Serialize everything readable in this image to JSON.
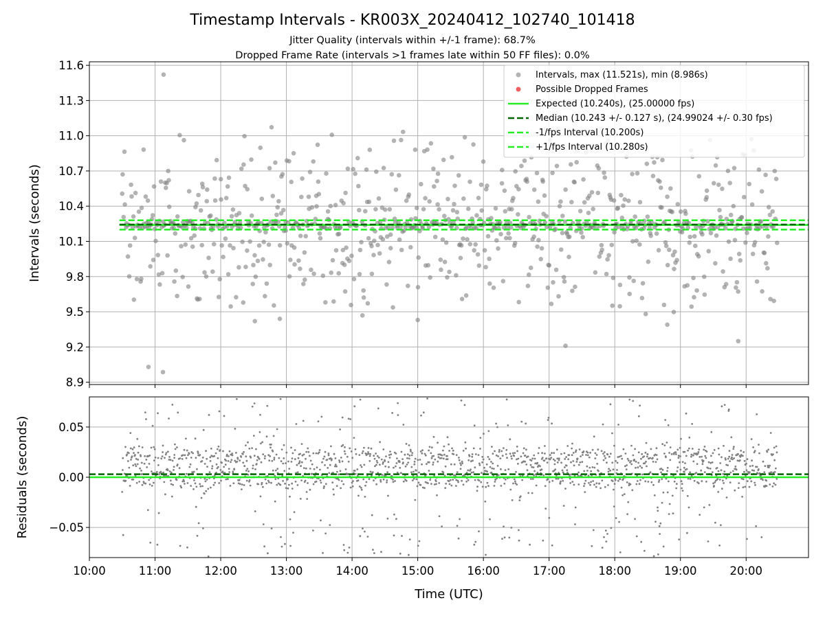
{
  "title": "Timestamp Intervals - KR003X_20240412_102740_101418",
  "subtitle_line1": "Jitter Quality (intervals within +/-1 frame): 68.7%",
  "subtitle_line2": "Dropped Frame Rate (intervals >1 frames late within 50 FF files): 0.0%",
  "colors": {
    "points": "#808080",
    "dropped": "#f06060",
    "expected": "#22ee22",
    "median": "#006400",
    "interval": "#22ee22",
    "grid": "#b0b0b0"
  },
  "chart_data": [
    {
      "type": "scatter",
      "name": "intervals",
      "xlabel": "",
      "ylabel": "Intervals (seconds)",
      "xlim": [
        10.0,
        20.95
      ],
      "ylim": [
        8.88,
        11.63
      ],
      "yticks": [
        8.9,
        9.2,
        9.5,
        9.8,
        10.1,
        10.4,
        10.7,
        11.0,
        11.3,
        11.6
      ],
      "ytick_labels": [
        "8.9",
        "9.2",
        "9.5",
        "9.8",
        "10.1",
        "10.4",
        "10.7",
        "11.0",
        "11.3",
        "11.6"
      ],
      "series_x_range": [
        10.5,
        20.47
      ],
      "stats": {
        "max": 11.521,
        "min": 8.986,
        "expected": 10.24,
        "median": 10.243,
        "lower": 10.2,
        "upper": 10.28
      },
      "outliers": [
        {
          "x": 11.13,
          "y": 11.521
        },
        {
          "x": 11.12,
          "y": 8.986
        },
        {
          "x": 10.9,
          "y": 9.03
        },
        {
          "x": 17.25,
          "y": 9.21
        },
        {
          "x": 19.88,
          "y": 9.25
        },
        {
          "x": 18.8,
          "y": 9.39
        },
        {
          "x": 12.52,
          "y": 9.42
        },
        {
          "x": 15.0,
          "y": 9.43
        },
        {
          "x": 12.9,
          "y": 9.44
        }
      ],
      "lines": [
        {
          "name": "expected",
          "y": 10.24
        },
        {
          "name": "median",
          "y": 10.243
        },
        {
          "name": "minus-1fps",
          "y": 10.2
        },
        {
          "name": "plus-1fps",
          "y": 10.28
        }
      ],
      "legend": {
        "placement": "top-right",
        "entries": [
          "Intervals, max (11.521s), min (8.986s)",
          "Possible Dropped Frames",
          "Expected (10.240s), (25.00000 fps)",
          "Median (10.243 +/- 0.127 s), (24.99024 +/- 0.30 fps)",
          "-1/fps Interval (10.200s)",
          "+1/fps Interval (10.280s)"
        ]
      }
    },
    {
      "type": "scatter",
      "name": "residuals",
      "xlabel": "Time (UTC)",
      "ylabel": "Residuals (seconds)",
      "xlim": [
        10.0,
        20.95
      ],
      "ylim": [
        -0.08,
        0.08
      ],
      "yticks": [
        -0.05,
        0.0,
        0.05
      ],
      "ytick_labels": [
        "−0.05",
        "0.00",
        "0.05"
      ],
      "xticks": [
        10,
        11,
        12,
        13,
        14,
        15,
        16,
        17,
        18,
        19,
        20
      ],
      "xtick_labels": [
        "10:00",
        "11:00",
        "12:00",
        "13:00",
        "14:00",
        "15:00",
        "16:00",
        "17:00",
        "18:00",
        "19:00",
        "20:00"
      ],
      "series_x_range": [
        10.5,
        20.47
      ],
      "lines": [
        {
          "name": "expected-zero",
          "y": 0.0
        },
        {
          "name": "median-offset",
          "y": 0.003
        }
      ]
    }
  ]
}
